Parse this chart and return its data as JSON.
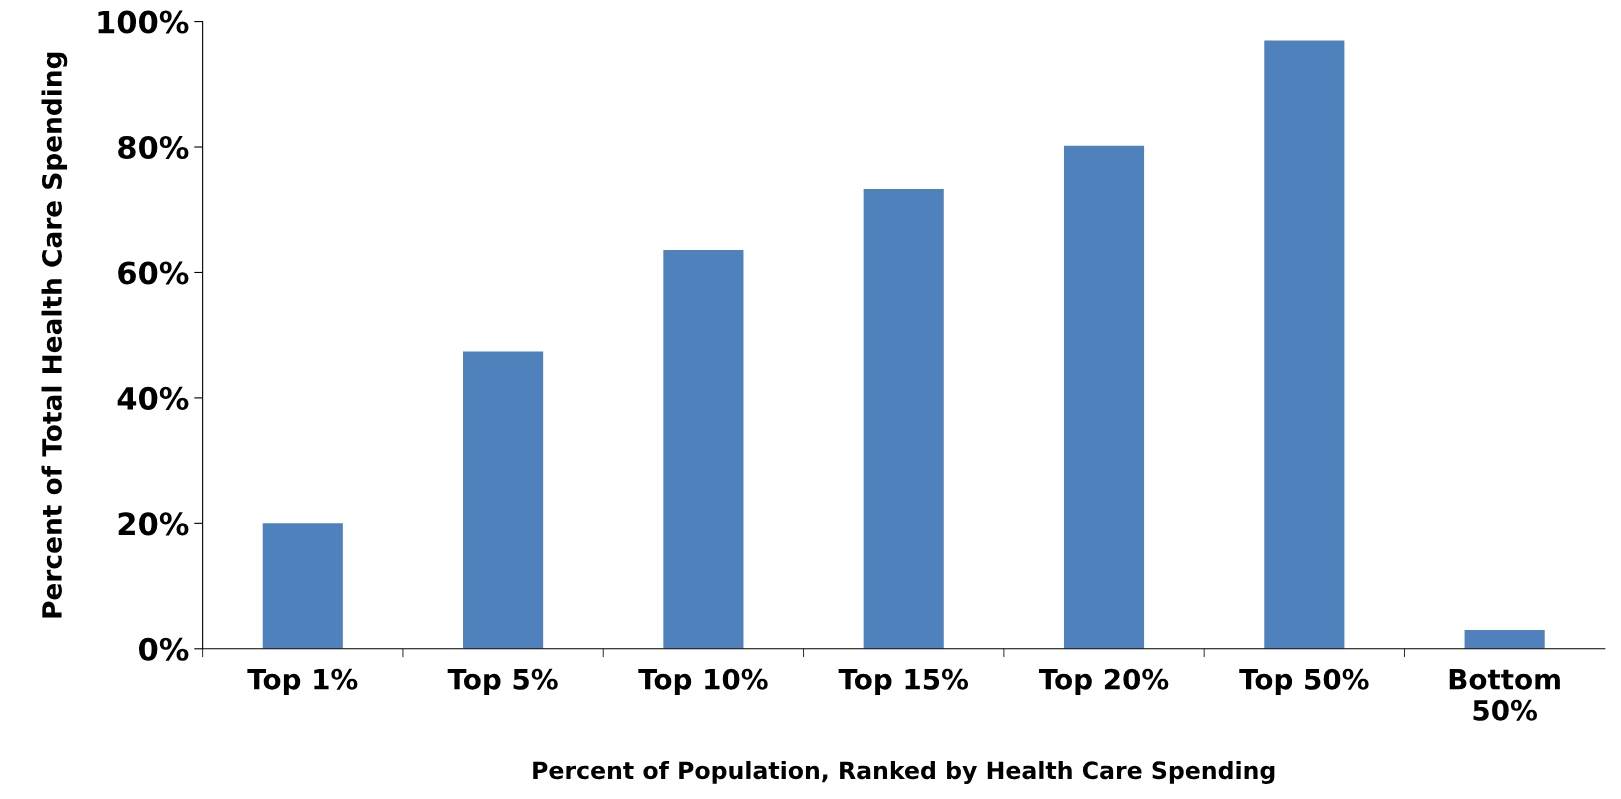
{
  "chart_data": {
    "type": "bar",
    "xlabel": "Percent of Population, Ranked by Health Care Spending",
    "ylabel": "Percent of Total Health Care Spending",
    "categories": [
      "Top 1%",
      "Top 5%",
      "Top 10%",
      "Top 15%",
      "Top 20%",
      "Top 50%",
      "Bottom\n50%"
    ],
    "values": [
      20,
      47.4,
      63.6,
      73.3,
      80.2,
      97,
      3
    ],
    "color": "#4f81bd",
    "ylim": [
      0,
      100
    ],
    "yticks": [
      {
        "value": 0,
        "label": "0%"
      },
      {
        "value": 20,
        "label": "20%"
      },
      {
        "value": 40,
        "label": "40%"
      },
      {
        "value": 60,
        "label": "60%"
      },
      {
        "value": 80,
        "label": "80%"
      },
      {
        "value": 100,
        "label": "100%"
      }
    ],
    "grid": false,
    "legend": false
  }
}
